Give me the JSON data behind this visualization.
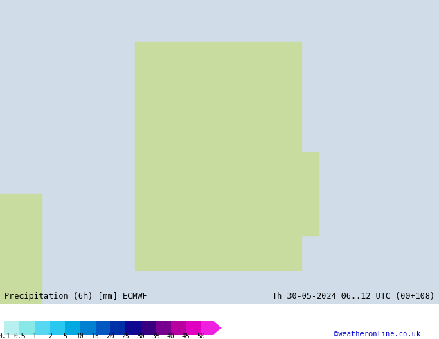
{
  "title_left": "Precipitation (6h) [mm] ECMWF",
  "title_right": "Th 30-05-2024 06..12 UTC (00+108)",
  "watermark": "©weatheronline.co.uk",
  "colorbar_levels": [
    "0.1",
    "0.5",
    "1",
    "2",
    "5",
    "10",
    "15",
    "20",
    "25",
    "30",
    "35",
    "40",
    "45",
    "50"
  ],
  "colorbar_colors": [
    "#b8f0f0",
    "#88e8e8",
    "#58d8f0",
    "#28c8f0",
    "#00aae0",
    "#0080d0",
    "#0058c0",
    "#0030a8",
    "#100890",
    "#380080",
    "#780090",
    "#b800a0",
    "#e000c0",
    "#f020e0"
  ],
  "bg_color": "#ffffff",
  "text_color": "#000000",
  "title_fontsize": 8.5,
  "watermark_color": "#0000cc",
  "watermark_fontsize": 7.5,
  "label_fontsize": 7.0,
  "map_image_url": "https://raw.githubusercontent.com/placeholder/placeholder/main/map.png"
}
